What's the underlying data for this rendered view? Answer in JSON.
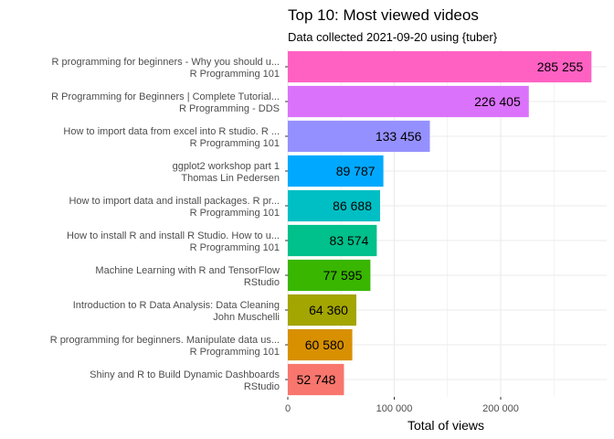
{
  "chart_data": {
    "type": "bar",
    "orientation": "horizontal",
    "title": "Top 10: Most viewed videos",
    "subtitle": "Data collected 2021-09-20 using {tuber}",
    "xlabel": "Total of views",
    "ylabel": "",
    "xlim": [
      0,
      300000
    ],
    "x_ticks": [
      0,
      100000,
      200000
    ],
    "x_tick_labels": [
      "0",
      "100 000",
      "200 000"
    ],
    "grid": true,
    "legend": "none",
    "categories": [
      {
        "title": "R programming for beginners -  Why you should u...",
        "channel": "R Programming 101",
        "value": 285255,
        "label": "285 255",
        "color": "#FF61C3"
      },
      {
        "title": "R Programming for Beginners | Complete Tutorial...",
        "channel": "R Programming - DDS",
        "value": 226405,
        "label": "226 405",
        "color": "#DB72FB"
      },
      {
        "title": "How to import data from excel into R studio. R ...",
        "channel": "R Programming 101",
        "value": 133456,
        "label": "133 456",
        "color": "#9590FF"
      },
      {
        "title": "ggplot2 workshop part 1",
        "channel": "Thomas Lin Pedersen",
        "value": 89787,
        "label": "89 787",
        "color": "#00A9FF"
      },
      {
        "title": "How to import data and install packages.   R pr...",
        "channel": "R Programming 101",
        "value": 86688,
        "label": "86 688",
        "color": "#00BFC4"
      },
      {
        "title": "How to install R and install R Studio. How to u...",
        "channel": "R Programming 101",
        "value": 83574,
        "label": "83 574",
        "color": "#00C08B"
      },
      {
        "title": "Machine Learning with R and TensorFlow",
        "channel": "RStudio",
        "value": 77595,
        "label": "77 595",
        "color": "#39B600"
      },
      {
        "title": "Introduction to R Data Analysis: Data Cleaning",
        "channel": "John Muschelli",
        "value": 64360,
        "label": "64 360",
        "color": "#A3A500"
      },
      {
        "title": "R programming for beginners. Manipulate data us...",
        "channel": "R Programming 101",
        "value": 60580,
        "label": "60 580",
        "color": "#D89000"
      },
      {
        "title": "Shiny and R to Build Dynamic Dashboards",
        "channel": "RStudio",
        "value": 52748,
        "label": "52 748",
        "color": "#F8766D"
      }
    ]
  }
}
